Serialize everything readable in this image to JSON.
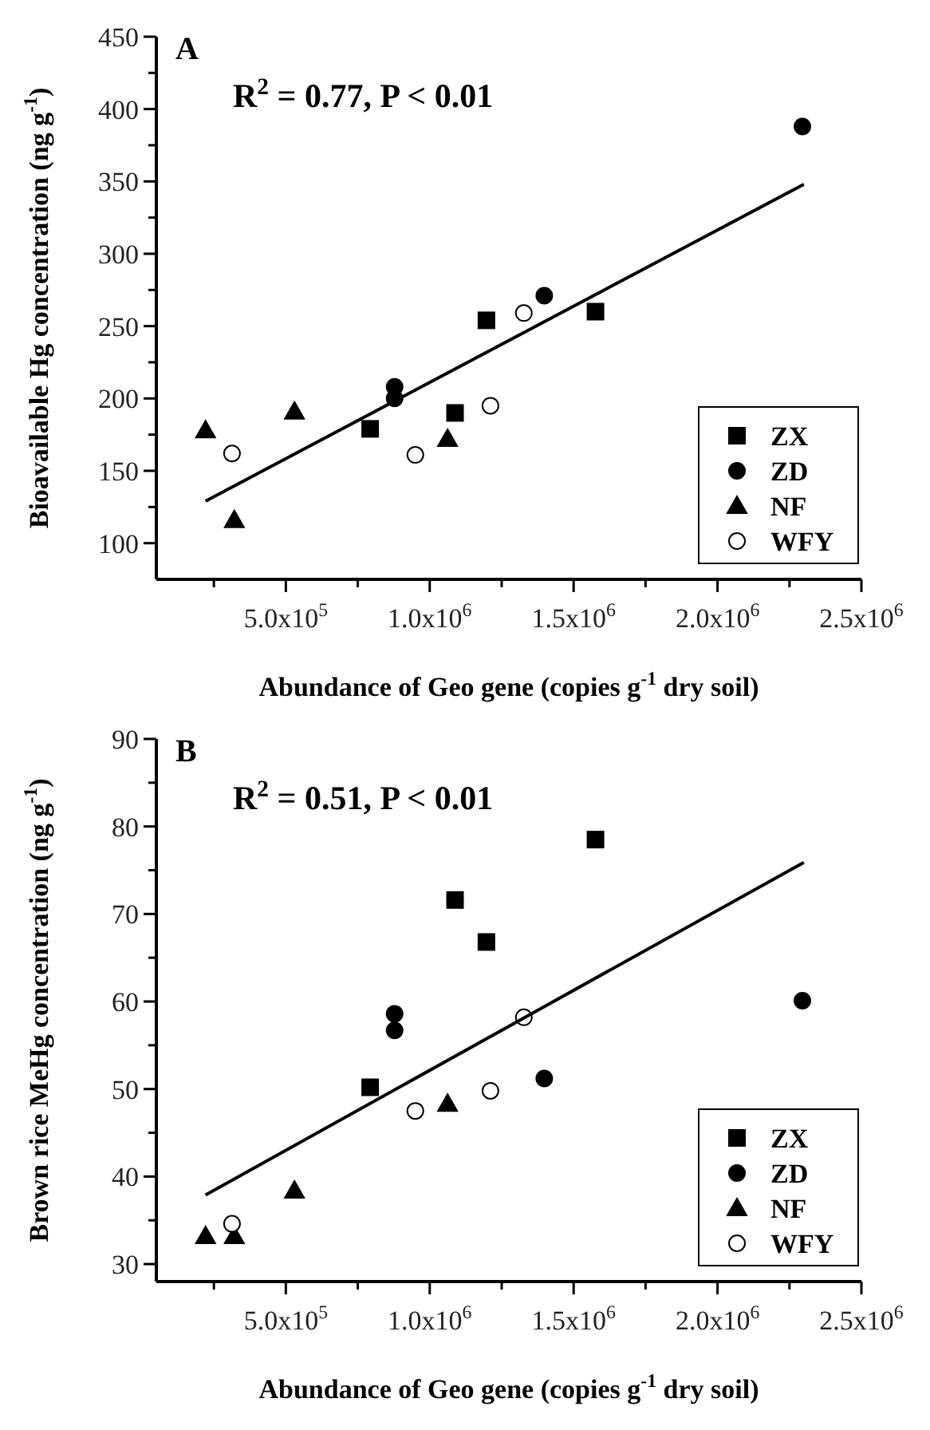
{
  "chart_data": [
    {
      "type": "scatter",
      "xlabel": "Abundance of Geo gene (copies g$^{-1}$ dry soil)",
      "ylabel": "Bioavailable Hg concentration (ng g$^{-1}$)",
      "annotations": [
        "A",
        "R$^{2}$ = 0.77, P < 0.01"
      ],
      "xlim": [
        50000,
        2500000
      ],
      "xticks": [
        {
          "value": 250000,
          "label": null
        },
        {
          "value": 500000,
          "label": "5.0x10$^{5}$"
        },
        {
          "value": 750000,
          "label": null
        },
        {
          "value": 1000000,
          "label": "1.0x10$^{6}$"
        },
        {
          "value": 1250000,
          "label": null
        },
        {
          "value": 1500000,
          "label": "1.5x10$^{6}$"
        },
        {
          "value": 1750000,
          "label": null
        },
        {
          "value": 2000000,
          "label": "2.0x10$^{6}$"
        },
        {
          "value": 2250000,
          "label": null
        },
        {
          "value": 2500000,
          "label": "2.5x10$^{6}$"
        }
      ],
      "ylim": [
        75,
        450
      ],
      "yticks": [
        100,
        {
          "value": 125,
          "label": null
        },
        150,
        {
          "value": 175,
          "label": null
        },
        200,
        {
          "value": 225,
          "label": null
        },
        250,
        {
          "value": 275,
          "label": null
        },
        300,
        {
          "value": 325,
          "label": null
        },
        350,
        {
          "value": 375,
          "label": null
        },
        400,
        {
          "value": 425,
          "label": null
        },
        450
      ],
      "grid": false,
      "legend": "bottom right",
      "series": [
        {
          "name": "ZX",
          "color": "#000000",
          "marker": "square",
          "x": [
            1197000,
            1576000,
            793000,
            1088000
          ],
          "values": [
            254,
            260,
            179,
            190
          ]
        },
        {
          "name": "ZD",
          "color": "#000000",
          "marker": "circle",
          "x": [
            2295000,
            1398000,
            878000,
            878000
          ],
          "values": [
            388,
            271,
            208,
            200
          ]
        },
        {
          "name": "NF",
          "color": "#000000",
          "marker": "triangle",
          "x": [
            221000,
            530000,
            321000,
            1062000
          ],
          "values": [
            178,
            191,
            116,
            172
          ]
        },
        {
          "name": "WFY",
          "color": "#ffffff",
          "marker": "circle",
          "x": [
            313000,
            950000,
            1211000,
            1327000
          ],
          "values": [
            162,
            161,
            195,
            259
          ]
        },
        {
          "type": "line",
          "color": "#000000",
          "marker": "none",
          "line_style": "solid",
          "x": [
            221000,
            2300000
          ],
          "values": [
            129,
            348
          ]
        }
      ]
    },
    {
      "type": "scatter",
      "xlabel": "Abundance of Geo gene (copies g$^{-1}$ dry soil)",
      "ylabel": "Brown rice MeHg concentration (ng g$^{-1}$)",
      "annotations": [
        "B",
        "R$^{2}$ = 0.51, P < 0.01"
      ],
      "xlim": [
        50000,
        2500000
      ],
      "xticks": [
        {
          "value": 250000,
          "label": null
        },
        {
          "value": 500000,
          "label": "5.0x10$^{5}$"
        },
        {
          "value": 750000,
          "label": null
        },
        {
          "value": 1000000,
          "label": "1.0x10$^{6}$"
        },
        {
          "value": 1250000,
          "label": null
        },
        {
          "value": 1500000,
          "label": "1.5x10$^{6}$"
        },
        {
          "value": 1750000,
          "label": null
        },
        {
          "value": 2000000,
          "label": "2.0x10$^{6}$"
        },
        {
          "value": 2250000,
          "label": null
        },
        {
          "value": 2500000,
          "label": "2.5x10$^{6}$"
        }
      ],
      "ylim": [
        28,
        90
      ],
      "yticks": [
        30,
        {
          "value": 35,
          "label": null
        },
        40,
        {
          "value": 45,
          "label": null
        },
        50,
        {
          "value": 55,
          "label": null
        },
        60,
        {
          "value": 65,
          "label": null
        },
        70,
        {
          "value": 75,
          "label": null
        },
        80,
        {
          "value": 85,
          "label": null
        },
        90
      ],
      "grid": false,
      "legend": "bottom right",
      "series": [
        {
          "name": "ZX",
          "color": "#000000",
          "marker": "square",
          "x": [
            793000,
            1088000,
            1197000,
            1576000
          ],
          "values": [
            50.2,
            71.6,
            66.8,
            78.5
          ]
        },
        {
          "name": "ZD",
          "color": "#000000",
          "marker": "circle",
          "x": [
            878000,
            878000,
            1398000,
            2295000
          ],
          "values": [
            58.6,
            56.7,
            51.2,
            60.1
          ]
        },
        {
          "name": "NF",
          "color": "#000000",
          "marker": "triangle",
          "x": [
            221000,
            321000,
            530000,
            1062000
          ],
          "values": [
            33.2,
            33.2,
            38.4,
            48.3
          ]
        },
        {
          "name": "WFY",
          "color": "#ffffff",
          "marker": "circle",
          "x": [
            313000,
            950000,
            1211000,
            1327000
          ],
          "values": [
            34.6,
            47.5,
            49.8,
            58.2
          ]
        },
        {
          "type": "line",
          "color": "#000000",
          "marker": "none",
          "line_style": "solid",
          "x": [
            221000,
            2300000
          ],
          "values": [
            37.9,
            75.9
          ]
        }
      ]
    }
  ]
}
